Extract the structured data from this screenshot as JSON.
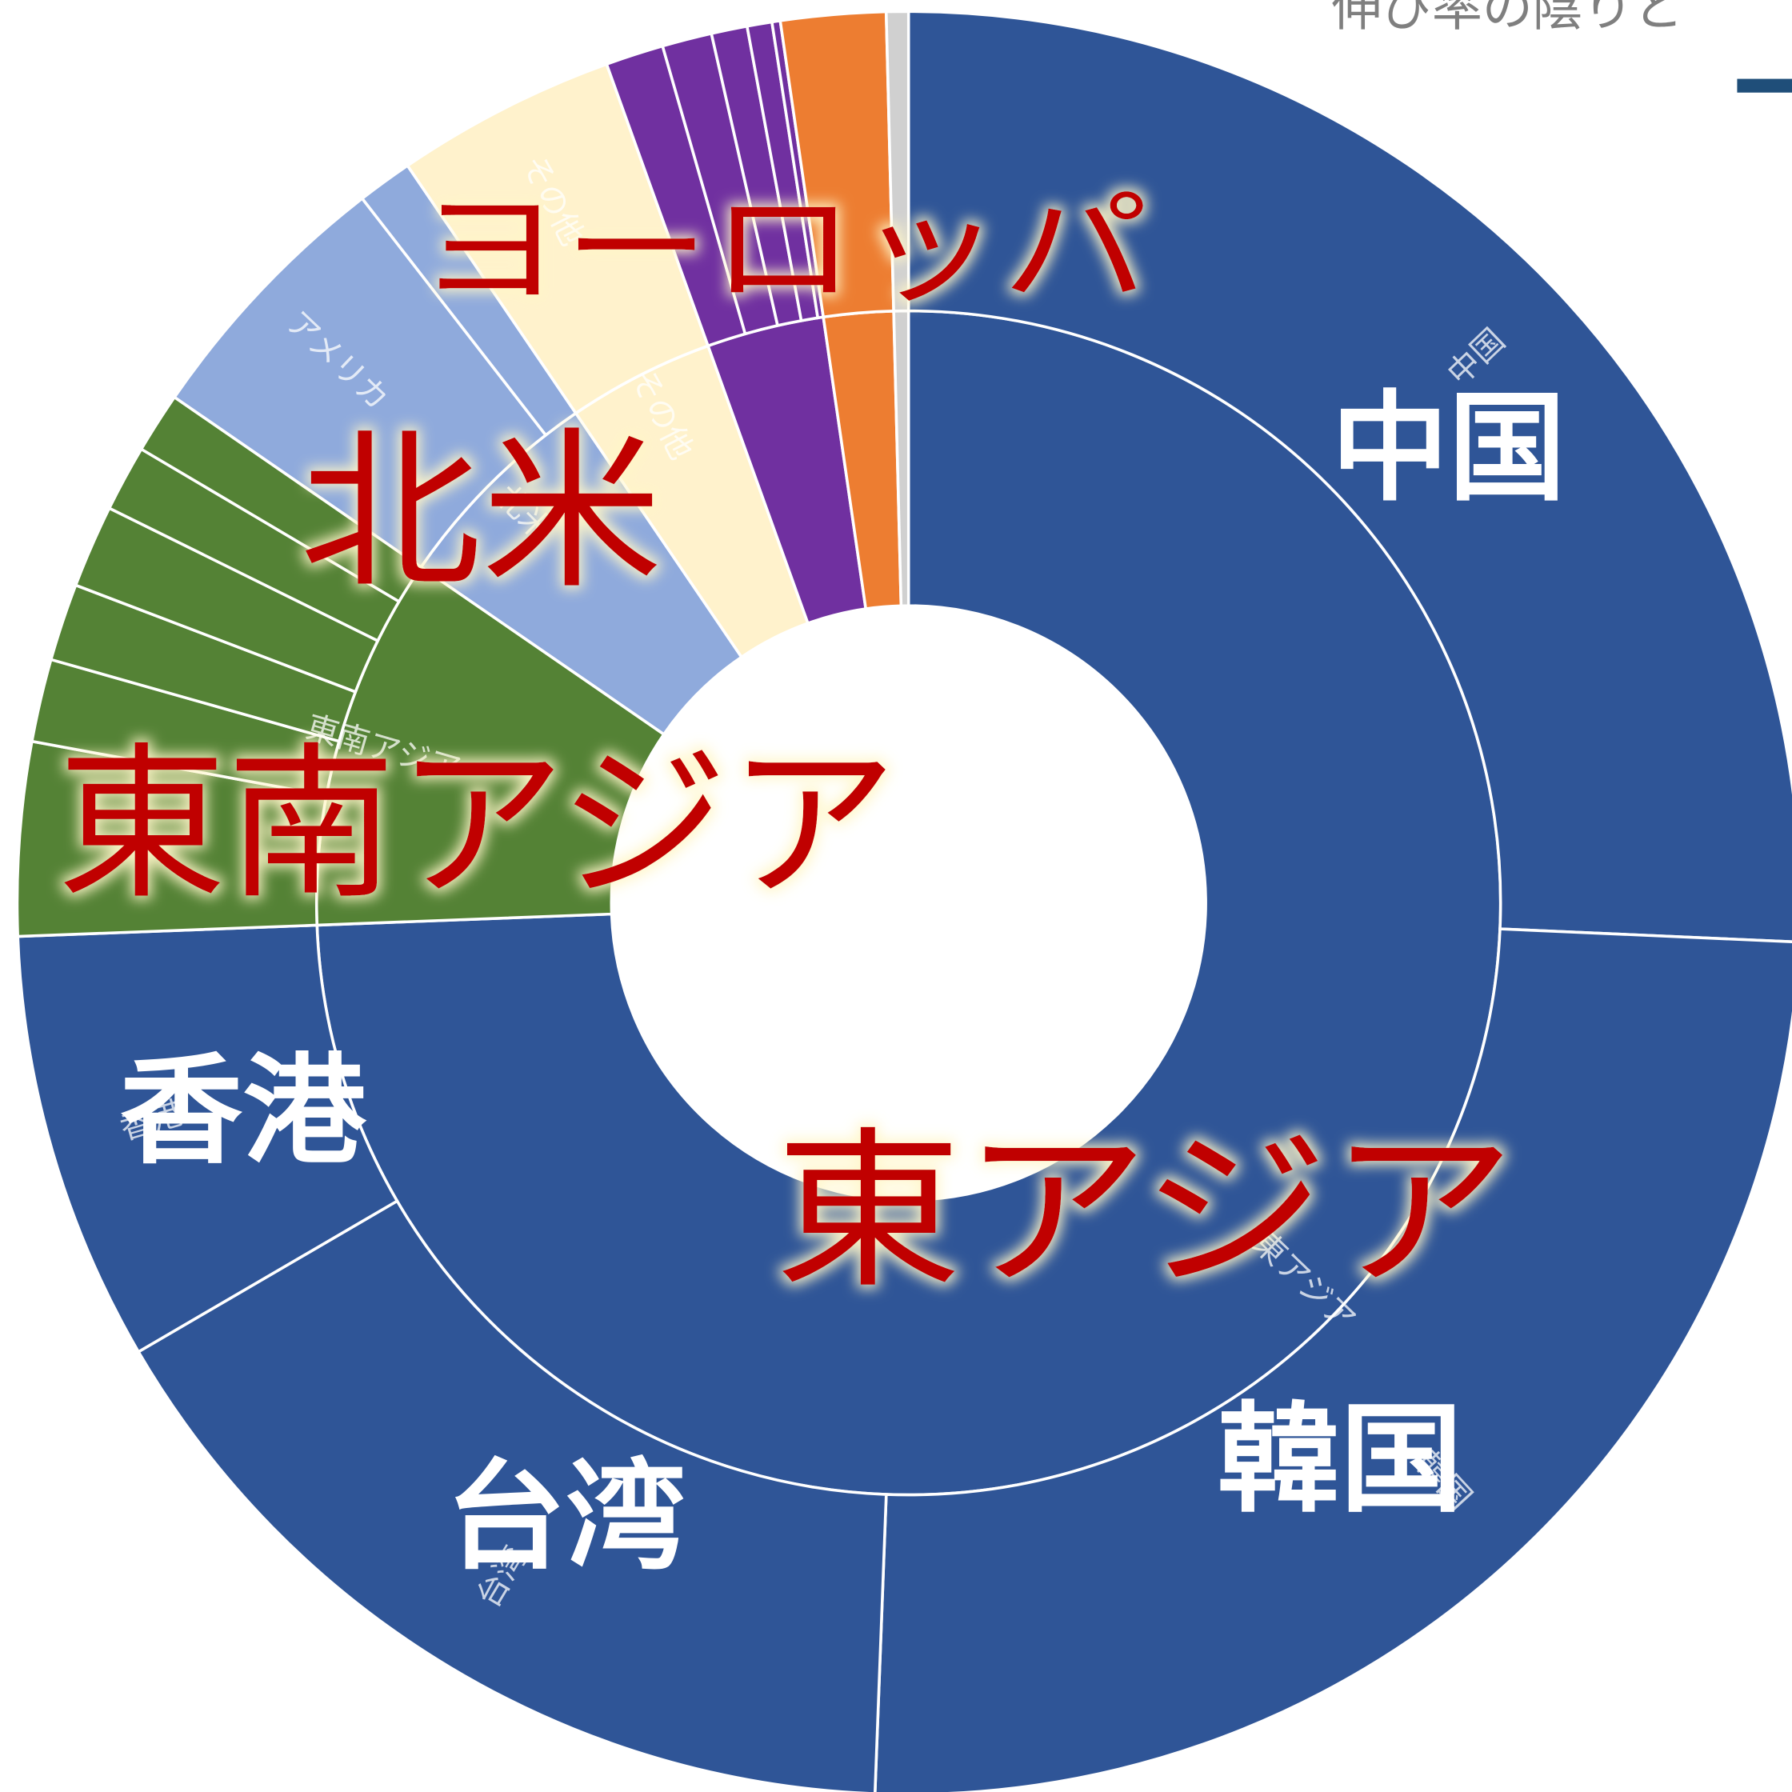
{
  "chart_data": {
    "type": "sunburst",
    "title": "伸び率の陰りと",
    "series": [
      {
        "name": "東アジア",
        "color": "#2f5597",
        "value": 74.4,
        "children": [
          {
            "name": "中国",
            "value": 25.7
          },
          {
            "name": "韓国",
            "value": 24.9
          },
          {
            "name": "台湾",
            "value": 16.0
          },
          {
            "name": "香港",
            "value": 7.8
          }
        ]
      },
      {
        "name": "東南アジア",
        "color": "#548235",
        "value": 10.2,
        "children": [
          {
            "name": null,
            "value": 3.5
          },
          {
            "name": null,
            "value": 1.5
          },
          {
            "name": null,
            "value": 1.4
          },
          {
            "name": null,
            "value": 1.5
          },
          {
            "name": null,
            "value": 1.2
          },
          {
            "name": null,
            "value": 1.1
          }
        ]
      },
      {
        "name": "北米",
        "color": "#8faadc",
        "value": 5.9,
        "children": [
          {
            "name": "アメリカ",
            "value": 4.9
          },
          {
            "name": null,
            "value": 1.0
          }
        ]
      },
      {
        "name": "その他",
        "color": "#fff2cc",
        "value": 4.0,
        "children": [
          {
            "name": "その他",
            "value": 4.0
          }
        ]
      },
      {
        "name": null,
        "color": "#7030a0",
        "value": 3.2,
        "children": [
          {
            "name": null,
            "value": 1.05
          },
          {
            "name": null,
            "value": 0.9
          },
          {
            "name": null,
            "value": 0.65
          },
          {
            "name": null,
            "value": 0.45
          },
          {
            "name": null,
            "value": 0.15
          }
        ]
      },
      {
        "name": null,
        "color": "#ed7d31",
        "value": 1.9,
        "children": [
          {
            "name": null,
            "value": 1.9
          }
        ]
      },
      {
        "name": null,
        "color": "#d0d0d0",
        "value": 0.4,
        "children": [
          {
            "name": null,
            "value": 0.4
          }
        ]
      }
    ],
    "annotations": [
      {
        "text": "ヨーロッパ"
      },
      {
        "text": "北米"
      },
      {
        "text": "東南アジア"
      },
      {
        "text": "東アジア"
      },
      {
        "text": "中国"
      },
      {
        "text": "香港"
      },
      {
        "text": "台湾"
      },
      {
        "text": "韓国"
      }
    ]
  }
}
